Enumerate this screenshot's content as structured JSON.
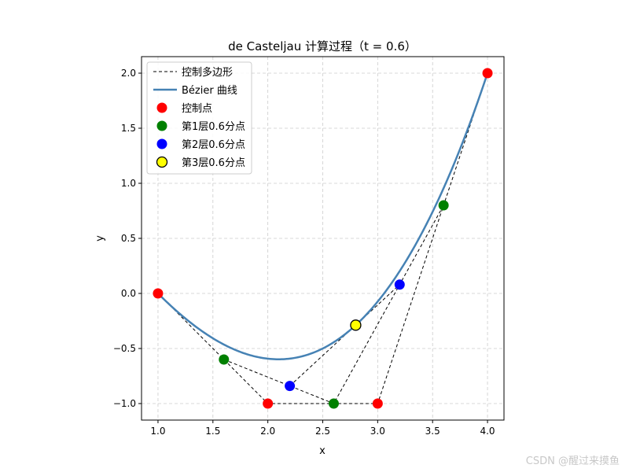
{
  "chart_data": {
    "type": "line",
    "title": "de Casteljau 计算过程（t = 0.6）",
    "xlabel": "x",
    "ylabel": "y",
    "xlim": [
      0.85,
      4.15
    ],
    "ylim": [
      -1.15,
      2.15
    ],
    "xticks": [
      1.0,
      1.5,
      2.0,
      2.5,
      3.0,
      3.5,
      4.0
    ],
    "xtick_labels": [
      "1.0",
      "1.5",
      "2.0",
      "2.5",
      "3.0",
      "3.5",
      "4.0"
    ],
    "yticks": [
      -1.0,
      -0.5,
      0.0,
      0.5,
      1.0,
      1.5,
      2.0
    ],
    "ytick_labels": [
      "−1.0",
      "−0.5",
      "0.0",
      "0.5",
      "1.0",
      "1.5",
      "2.0"
    ],
    "grid": true,
    "legend_position": "top-left",
    "t": 0.6,
    "control_points": [
      [
        1,
        0
      ],
      [
        2,
        -1
      ],
      [
        3,
        -1
      ],
      [
        4,
        2
      ]
    ],
    "series": [
      {
        "name": "控制多边形",
        "kind": "dashed-polyline",
        "color": "#000000",
        "points": [
          [
            1,
            0
          ],
          [
            2,
            -1
          ],
          [
            3,
            -1
          ],
          [
            4,
            2
          ]
        ]
      },
      {
        "name": "Bézier 曲线",
        "kind": "curve",
        "color": "#4682b4"
      },
      {
        "name": "控制点",
        "kind": "points",
        "color": "#ff0000",
        "points": [
          [
            1,
            0
          ],
          [
            2,
            -1
          ],
          [
            3,
            -1
          ],
          [
            4,
            2
          ]
        ]
      },
      {
        "name": "第1层0.6分点",
        "kind": "points",
        "color": "#008000",
        "points": [
          [
            1.6,
            -0.6
          ],
          [
            2.6,
            -1.0
          ],
          [
            3.6,
            0.8
          ]
        ]
      },
      {
        "name": "第2层0.6分点",
        "kind": "points",
        "color": "#0000ff",
        "points": [
          [
            2.2,
            -0.84
          ],
          [
            3.2,
            0.08
          ]
        ]
      },
      {
        "name": "第3层0.6分点",
        "kind": "points",
        "color": "#ffff00",
        "edge": "#000000",
        "points": [
          [
            2.8,
            -0.288
          ]
        ]
      }
    ],
    "construction_lines": [
      [
        [
          1.6,
          -0.6
        ],
        [
          2.6,
          -1.0
        ],
        [
          3.6,
          0.8
        ]
      ],
      [
        [
          2.2,
          -0.84
        ],
        [
          3.2,
          0.08
        ]
      ]
    ]
  },
  "watermark": "CSDN @醒过来摸鱼"
}
